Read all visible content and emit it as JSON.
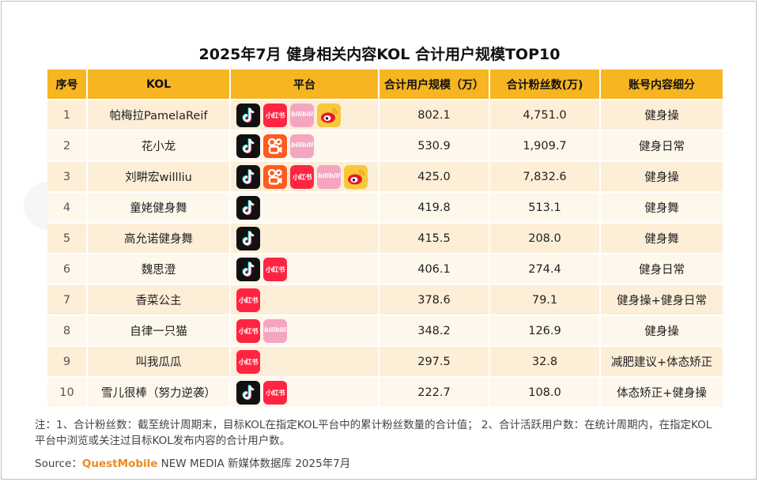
{
  "chart_data": {
    "type": "table",
    "title": "2025年7月 健身相关内容KOL 合计用户规模TOP10",
    "columns": [
      "序号",
      "KOL",
      "平台",
      "合计用户规模（万）",
      "合计粉丝数(万)",
      "账号内容细分"
    ],
    "rows": [
      {
        "rank": "1",
        "kol": "帕梅拉PamelaReif",
        "platforms": [
          "douyin",
          "xiaohongshu",
          "bilibili",
          "weibo"
        ],
        "users": "802.1",
        "fans": "4,751.0",
        "category": "健身操"
      },
      {
        "rank": "2",
        "kol": "花小龙",
        "platforms": [
          "douyin",
          "kuaishou",
          "bilibili"
        ],
        "users": "530.9",
        "fans": "1,909.7",
        "category": "健身日常"
      },
      {
        "rank": "3",
        "kol": "刘畊宏willliu",
        "platforms": [
          "douyin",
          "kuaishou",
          "xiaohongshu",
          "bilibili",
          "weibo"
        ],
        "users": "425.0",
        "fans": "7,832.6",
        "category": "健身操"
      },
      {
        "rank": "4",
        "kol": "童姥健身舞",
        "platforms": [
          "douyin"
        ],
        "users": "419.8",
        "fans": "513.1",
        "category": "健身舞"
      },
      {
        "rank": "5",
        "kol": "高允诺健身舞",
        "platforms": [
          "douyin"
        ],
        "users": "415.5",
        "fans": "208.0",
        "category": "健身舞"
      },
      {
        "rank": "6",
        "kol": "魏思澄",
        "platforms": [
          "douyin",
          "xiaohongshu"
        ],
        "users": "406.1",
        "fans": "274.4",
        "category": "健身日常"
      },
      {
        "rank": "7",
        "kol": "香菜公主",
        "platforms": [
          "xiaohongshu"
        ],
        "users": "378.6",
        "fans": "79.1",
        "category": "健身操+健身日常"
      },
      {
        "rank": "8",
        "kol": "自律一只猫",
        "platforms": [
          "xiaohongshu",
          "bilibili"
        ],
        "users": "348.2",
        "fans": "126.9",
        "category": "健身操"
      },
      {
        "rank": "9",
        "kol": "叫我瓜瓜",
        "platforms": [
          "xiaohongshu"
        ],
        "users": "297.5",
        "fans": "32.8",
        "category": "减肥建议+体态矫正"
      },
      {
        "rank": "10",
        "kol": "雪儿很棒（努力逆袭）",
        "platforms": [
          "douyin",
          "xiaohongshu"
        ],
        "users": "222.7",
        "fans": "108.0",
        "category": "体态矫正+健身操"
      }
    ]
  },
  "icons": {
    "xiaohongshu_text": "小红书",
    "bilibili_text": "bilibili"
  },
  "colors": {
    "header": "#f7b521",
    "row_odd": "#fdeed7",
    "row_even": "#fef7ec",
    "brand": "#f08a1c"
  },
  "note": "注：1、合计粉丝数：截至统计周期末，目标KOL在指定KOL平台中的累计粉丝数量的合计值； 2、合计活跃用户数：在统计周期内，在指定KOL平台中浏览或关注过目标KOL发布内容的合计用户数。",
  "source": {
    "label": "Source：",
    "brand": "QuestMobile",
    "rest": " NEW MEDIA 新媒体数据库 2025年7月"
  }
}
